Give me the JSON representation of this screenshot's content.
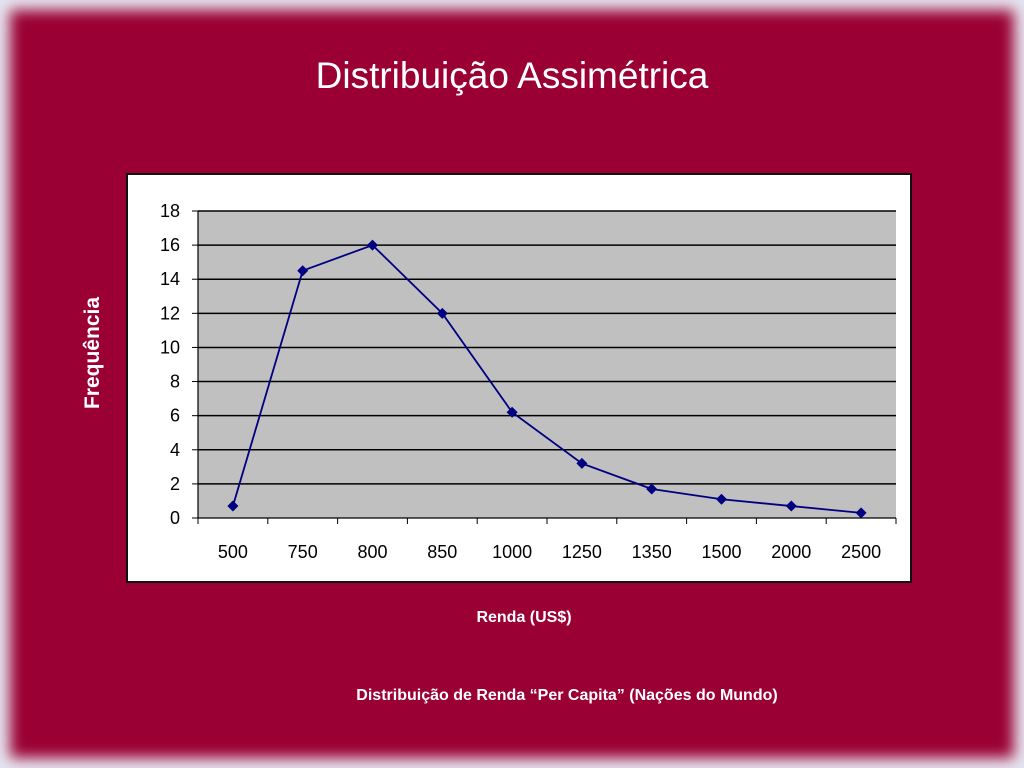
{
  "slide": {
    "title": "Distribuição Assimétrica",
    "caption": "Distribuição de Renda “Per Capita” (Nações do Mundo)"
  },
  "chart_data": {
    "type": "line",
    "categories": [
      "500",
      "750",
      "800",
      "850",
      "1000",
      "1250",
      "1350",
      "1500",
      "2000",
      "2500"
    ],
    "series": [
      {
        "values": [
          0.7,
          14.5,
          16,
          12,
          6.2,
          3.2,
          1.7,
          1.1,
          0.7,
          0.3
        ]
      }
    ],
    "xlabel": "Renda (US$)",
    "ylabel": "Frequência",
    "ylim": [
      0,
      18
    ],
    "yticks": [
      0,
      2,
      4,
      6,
      8,
      10,
      12,
      14,
      16,
      18
    ],
    "grid": true,
    "legend": "none",
    "colors": {
      "background": "#9a0033",
      "plot_area": "#c0c0c0",
      "line": "#000080",
      "gridline": "#000000"
    }
  }
}
